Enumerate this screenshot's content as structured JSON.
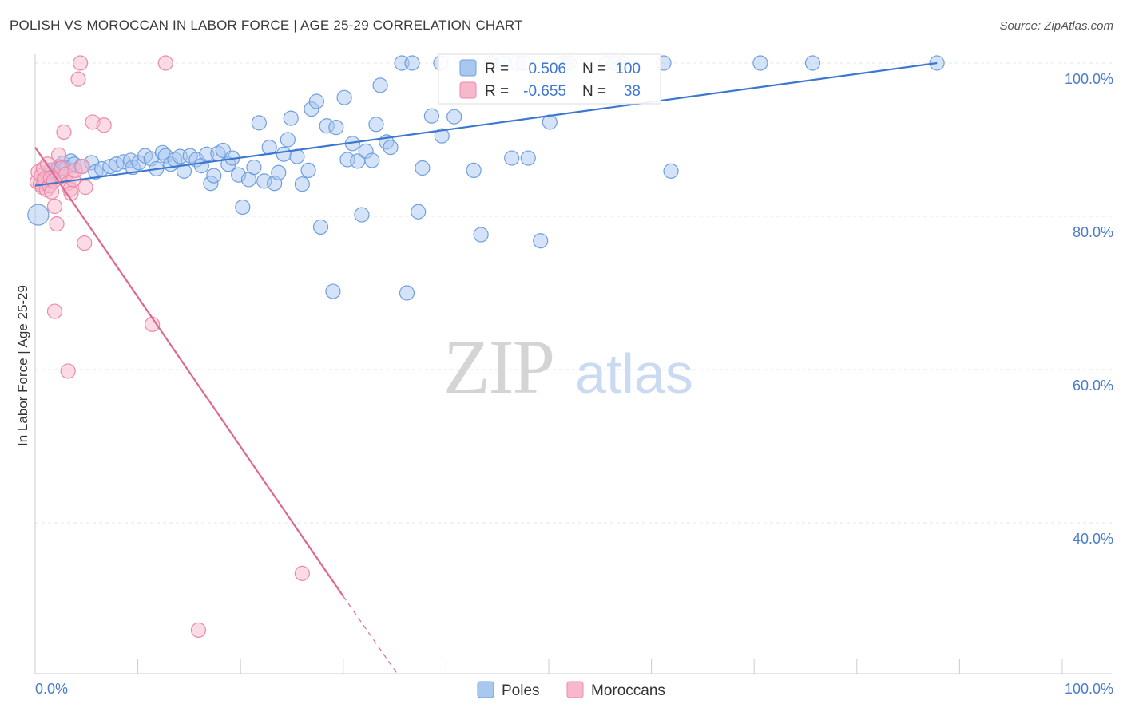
{
  "title": "POLISH VS MOROCCAN IN LABOR FORCE | AGE 25-29 CORRELATION CHART",
  "source": "Source: ZipAtlas.com",
  "watermark": {
    "zip": "ZIP",
    "atlas": "atlas"
  },
  "colors": {
    "poles_fill": "#a9c8f0",
    "poles_stroke": "#6f9fe0",
    "poles_line": "#3c78d0",
    "moroccans_fill": "#f7b8cc",
    "moroccans_stroke": "#ec8aa9",
    "moroccans_line": "#e0688f",
    "tick_label": "#4a7cc9",
    "grid": "#e4e4e4"
  },
  "legend": {
    "poles": {
      "r_label": "R =",
      "r_value": "0.506",
      "n_label": "N =",
      "n_value": "100"
    },
    "moroccans": {
      "r_label": "R =",
      "r_value": "-0.655",
      "n_label": "N =",
      "n_value": "38"
    }
  },
  "chart_data": {
    "type": "scatter",
    "xlabel": "",
    "ylabel": "In Labor Force | Age 25-29",
    "xlim": [
      0,
      100
    ],
    "ylim": [
      20,
      101
    ],
    "x_tick_labels": {
      "left": "0.0%",
      "right": "100.0%"
    },
    "y_ticks": [
      {
        "value": 100,
        "label": "100.0%"
      },
      {
        "value": 80,
        "label": "80.0%"
      },
      {
        "value": 60,
        "label": "60.0%"
      },
      {
        "value": 40,
        "label": "40.0%"
      }
    ],
    "grid": true,
    "legend_position": "top-center",
    "series": [
      {
        "name": "Poles",
        "points": [
          [
            0.3,
            80.2
          ],
          [
            1.2,
            85.3
          ],
          [
            1.4,
            84.7
          ],
          [
            1.5,
            86.0
          ],
          [
            2.0,
            85.8
          ],
          [
            2.3,
            86.5
          ],
          [
            2.7,
            86.9
          ],
          [
            3.0,
            86.3
          ],
          [
            3.5,
            87.2
          ],
          [
            3.8,
            86.8
          ],
          [
            4.5,
            86.5
          ],
          [
            5.5,
            87.0
          ],
          [
            5.9,
            85.8
          ],
          [
            6.5,
            86.2
          ],
          [
            7.3,
            86.5
          ],
          [
            7.9,
            86.8
          ],
          [
            8.6,
            87.1
          ],
          [
            9.3,
            87.3
          ],
          [
            9.5,
            86.4
          ],
          [
            10.1,
            87.0
          ],
          [
            10.7,
            87.9
          ],
          [
            11.3,
            87.5
          ],
          [
            11.8,
            86.2
          ],
          [
            12.4,
            88.3
          ],
          [
            12.7,
            87.9
          ],
          [
            13.2,
            86.8
          ],
          [
            13.6,
            87.4
          ],
          [
            14.1,
            87.8
          ],
          [
            14.5,
            85.9
          ],
          [
            15.1,
            87.9
          ],
          [
            15.7,
            87.4
          ],
          [
            16.2,
            86.6
          ],
          [
            16.7,
            88.1
          ],
          [
            17.1,
            84.3
          ],
          [
            17.4,
            85.3
          ],
          [
            17.8,
            88.2
          ],
          [
            18.3,
            88.6
          ],
          [
            18.8,
            86.8
          ],
          [
            19.2,
            87.6
          ],
          [
            19.8,
            85.4
          ],
          [
            20.2,
            81.2
          ],
          [
            20.8,
            84.8
          ],
          [
            21.3,
            86.4
          ],
          [
            21.8,
            92.2
          ],
          [
            22.3,
            84.6
          ],
          [
            22.8,
            89.0
          ],
          [
            23.3,
            84.3
          ],
          [
            23.7,
            85.7
          ],
          [
            24.2,
            88.1
          ],
          [
            24.6,
            90.0
          ],
          [
            24.9,
            92.8
          ],
          [
            25.5,
            87.8
          ],
          [
            26.0,
            84.2
          ],
          [
            26.6,
            86.0
          ],
          [
            26.9,
            94.0
          ],
          [
            27.4,
            95.0
          ],
          [
            27.8,
            78.6
          ],
          [
            28.4,
            91.8
          ],
          [
            29.0,
            70.2
          ],
          [
            29.3,
            91.6
          ],
          [
            30.1,
            95.5
          ],
          [
            30.4,
            87.4
          ],
          [
            30.9,
            89.5
          ],
          [
            31.4,
            87.2
          ],
          [
            31.8,
            80.2
          ],
          [
            32.2,
            88.5
          ],
          [
            32.8,
            87.3
          ],
          [
            33.2,
            92.0
          ],
          [
            33.6,
            97.1
          ],
          [
            34.2,
            89.7
          ],
          [
            34.6,
            89.0
          ],
          [
            35.7,
            100.0
          ],
          [
            36.2,
            70.0
          ],
          [
            36.7,
            100.0
          ],
          [
            37.3,
            80.6
          ],
          [
            37.7,
            86.3
          ],
          [
            38.6,
            93.1
          ],
          [
            39.5,
            100.0
          ],
          [
            39.6,
            90.5
          ],
          [
            40.8,
            93.0
          ],
          [
            42.7,
            86.0
          ],
          [
            43.4,
            77.6
          ],
          [
            44.4,
            100.0
          ],
          [
            45.6,
            100.0
          ],
          [
            46.4,
            87.6
          ],
          [
            47.0,
            100.0
          ],
          [
            47.6,
            100.0
          ],
          [
            48.0,
            87.6
          ],
          [
            49.2,
            76.8
          ],
          [
            50.1,
            92.3
          ],
          [
            51.5,
            100.0
          ],
          [
            52.0,
            100.0
          ],
          [
            55.6,
            100.0
          ],
          [
            56.4,
            100.0
          ],
          [
            57.2,
            100.0
          ],
          [
            61.2,
            100.0
          ],
          [
            61.9,
            85.9
          ],
          [
            70.6,
            100.0
          ],
          [
            75.7,
            100.0
          ],
          [
            87.8,
            100.0
          ]
        ],
        "trend": {
          "x0": 0,
          "y0": 84.0,
          "x1": 87.8,
          "y1": 100.0
        }
      },
      {
        "name": "Moroccans",
        "points": [
          [
            0.2,
            84.5
          ],
          [
            0.3,
            85.8
          ],
          [
            0.5,
            84.2
          ],
          [
            0.6,
            85.3
          ],
          [
            0.7,
            83.8
          ],
          [
            0.8,
            86.2
          ],
          [
            0.9,
            84.8
          ],
          [
            1.1,
            83.5
          ],
          [
            1.2,
            86.8
          ],
          [
            1.4,
            84.0
          ],
          [
            1.5,
            85.0
          ],
          [
            1.6,
            83.2
          ],
          [
            1.8,
            84.6
          ],
          [
            1.9,
            81.3
          ],
          [
            2.1,
            79.0
          ],
          [
            2.3,
            88.0
          ],
          [
            2.5,
            85.2
          ],
          [
            2.6,
            86.3
          ],
          [
            2.8,
            91.0
          ],
          [
            3.0,
            85.5
          ],
          [
            3.2,
            84.3
          ],
          [
            3.4,
            83.5
          ],
          [
            3.5,
            83.0
          ],
          [
            3.7,
            84.8
          ],
          [
            3.9,
            86.0
          ],
          [
            4.2,
            97.9
          ],
          [
            4.4,
            100.0
          ],
          [
            4.6,
            86.5
          ],
          [
            4.8,
            76.5
          ],
          [
            4.9,
            83.8
          ],
          [
            5.6,
            92.3
          ],
          [
            6.7,
            91.9
          ],
          [
            1.9,
            67.6
          ],
          [
            3.2,
            59.8
          ],
          [
            11.4,
            65.9
          ],
          [
            12.7,
            100.0
          ],
          [
            15.9,
            26.0
          ],
          [
            26.0,
            33.4
          ]
        ],
        "trend": {
          "x0": 0,
          "y0": 89.0,
          "x1": 30.0,
          "y1": 30.4
        },
        "trend_dashed": {
          "x0": 30.0,
          "y0": 30.4,
          "x1": 35.2,
          "y1": 20.4
        }
      }
    ]
  }
}
